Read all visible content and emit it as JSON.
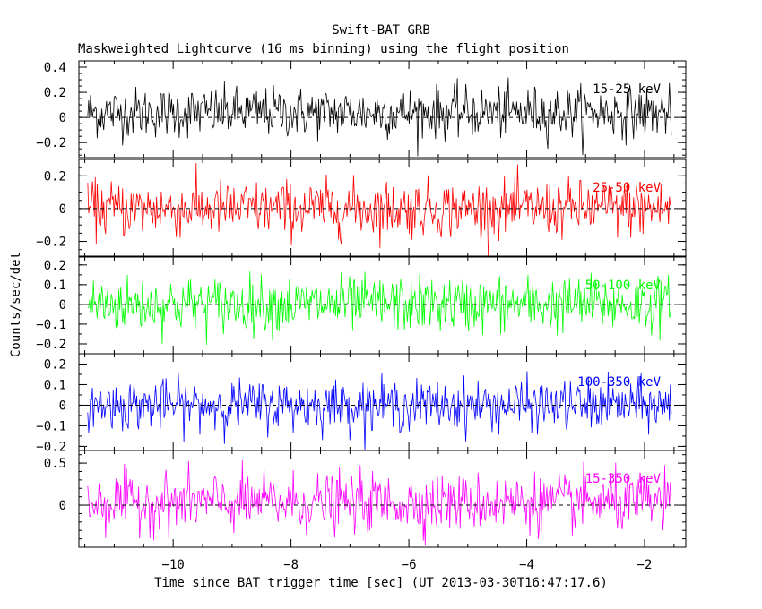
{
  "chart_data": {
    "type": "line",
    "title": "Swift-BAT GRB",
    "subtitle": "Maskweighted Lightcurve (16 ms binning) using the flight position",
    "xlabel": "Time since BAT trigger time [sec] (UT 2013-03-30T16:47:17.6)",
    "ylabel": "Counts/sec/det",
    "xlim": [
      -11.6,
      -1.3
    ],
    "x_ticks": [
      -10,
      -8,
      -6,
      -4,
      -2
    ],
    "x_tick_labels": [
      "−10",
      "−8",
      "−6",
      "−4",
      "−2"
    ],
    "x_range_data": [
      -11.45,
      -1.55
    ],
    "bin_width_s": 0.016,
    "panels": [
      {
        "name": "15-25 keV",
        "color": "#000000",
        "ylim": [
          -0.32,
          0.45
        ],
        "y_ticks": [
          -0.2,
          0,
          0.2,
          0.4
        ],
        "y_tick_labels": [
          "−0.2",
          "0",
          "0.2",
          "0.4"
        ],
        "noise_sigma": 0.1,
        "mean": 0.04,
        "minor_step": 0.05
      },
      {
        "name": "25-50 keV",
        "color": "#ff0000",
        "ylim": [
          -0.29,
          0.3
        ],
        "y_ticks": [
          -0.2,
          0,
          0.2
        ],
        "y_tick_labels": [
          "−0.2",
          "0",
          "0.2"
        ],
        "noise_sigma": 0.085,
        "mean": 0.0,
        "minor_step": 0.05
      },
      {
        "name": "50-100 keV",
        "color": "#00ff00",
        "ylim": [
          -0.25,
          0.24
        ],
        "y_ticks": [
          -0.2,
          -0.1,
          0,
          0.1,
          0.2
        ],
        "y_tick_labels": [
          "−0.2",
          "−0.1",
          "0",
          "0.1",
          "0.2"
        ],
        "noise_sigma": 0.07,
        "mean": 0.0,
        "minor_step": 0.05
      },
      {
        "name": "100-350 keV",
        "color": "#0000ff",
        "ylim": [
          -0.22,
          0.25
        ],
        "y_ticks": [
          -0.2,
          -0.1,
          0,
          0.1,
          0.2
        ],
        "y_tick_labels": [
          "−0.2",
          "−0.1",
          "0",
          "0.1",
          "0.2"
        ],
        "noise_sigma": 0.06,
        "mean": 0.0,
        "minor_step": 0.05
      },
      {
        "name": "15-350 keV",
        "color": "#ff00ff",
        "ylim": [
          -0.5,
          0.65
        ],
        "y_ticks": [
          0,
          0.5
        ],
        "y_tick_labels": [
          "0",
          "0.5"
        ],
        "noise_sigma": 0.17,
        "mean": 0.03,
        "minor_step": 0.1
      }
    ]
  }
}
